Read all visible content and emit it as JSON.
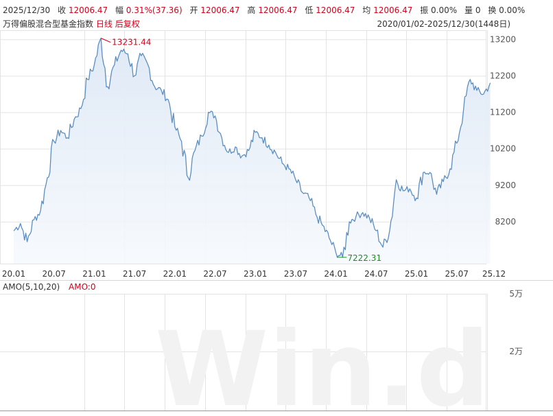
{
  "header": {
    "date": "2025/12/30",
    "close_label": "收",
    "close_value": "12006.47",
    "change_label": "幅",
    "change_value": "0.31%(37.36)",
    "open_label": "开",
    "open_value": "12006.47",
    "high_label": "高",
    "high_value": "12006.47",
    "low_label": "低",
    "low_value": "12006.47",
    "avg_label": "均",
    "avg_value": "12006.47",
    "amp_label": "振",
    "amp_value": "0.00%",
    "vol_label": "量",
    "vol_value": "0",
    "turnover_label": "换",
    "turnover_value": "0.00%"
  },
  "subheader": {
    "index_name": "万得偏股混合型基金指数",
    "period": "日线",
    "adjust": "后复权",
    "range": "2020/01/02-2025/12/30(1448日)"
  },
  "amo": {
    "label": "AMO(5,10,20)",
    "value_label": "AMO:0",
    "ticks": [
      "5万",
      "2万"
    ]
  },
  "watermark": "Win.d",
  "colors": {
    "line": "#5b8ec3",
    "fill_top": "#dde8f5",
    "grid": "#e3e3e3",
    "red": "#d0021b",
    "green": "#1e8f1e"
  },
  "chart_data": {
    "type": "area",
    "title": "",
    "y_ticks": [
      13200,
      12200,
      11200,
      10200,
      9200,
      8200
    ],
    "ylim": [
      7050,
      13450
    ],
    "x_ticks": [
      "20.01",
      "20.07",
      "21.01",
      "21.07",
      "22.01",
      "22.07",
      "23.01",
      "23.07",
      "24.01",
      "24.07",
      "25.01",
      "25.07",
      "25.12"
    ],
    "max_annotation": {
      "date": "21.02",
      "value": 13231.44,
      "label": "13231.44"
    },
    "min_annotation": {
      "date": "24.02",
      "value": 7222.31,
      "label": "7222.31"
    },
    "series": [
      {
        "x": [
          "20.01",
          "20.02",
          "20.03",
          "20.04",
          "20.05",
          "20.06",
          "20.07",
          "20.08",
          "20.09",
          "20.10",
          "20.11",
          "20.12",
          "21.01",
          "21.02",
          "21.03",
          "21.04",
          "21.05",
          "21.06",
          "21.07",
          "21.08",
          "21.09",
          "21.10",
          "21.11",
          "21.12",
          "22.01",
          "22.02",
          "22.03",
          "22.04",
          "22.05",
          "22.06",
          "22.07",
          "22.08",
          "22.09",
          "22.10",
          "22.11",
          "22.12",
          "23.01",
          "23.02",
          "23.03",
          "23.04",
          "23.05",
          "23.06",
          "23.07",
          "23.08",
          "23.09",
          "23.10",
          "23.11",
          "23.12",
          "24.01",
          "24.02",
          "24.03",
          "24.04",
          "24.05",
          "24.06",
          "24.07",
          "24.08",
          "24.09",
          "24.10",
          "24.11",
          "24.12",
          "25.01",
          "25.02",
          "25.03",
          "25.04",
          "25.05",
          "25.06",
          "25.07",
          "25.08",
          "25.09",
          "25.10",
          "25.11",
          "25.12"
        ],
        "values": [
          7950,
          8150,
          7650,
          8250,
          8500,
          9400,
          10400,
          10700,
          10500,
          11000,
          11300,
          12100,
          12500,
          13231.44,
          11900,
          12500,
          12900,
          12800,
          12200,
          12750,
          12500,
          11900,
          11800,
          11550,
          10800,
          10400,
          9400,
          10150,
          10550,
          11200,
          11100,
          10500,
          10100,
          10250,
          10000,
          10150,
          10650,
          10500,
          10300,
          10100,
          9800,
          9650,
          9350,
          9000,
          8850,
          8400,
          8100,
          7750,
          7350,
          7222.31,
          8200,
          8350,
          8450,
          8300,
          7950,
          7500,
          7950,
          9350,
          9050,
          9100,
          8850,
          9550,
          9550,
          8950,
          9300,
          9650,
          10350,
          11250,
          12100,
          11800,
          11700,
          12006.47
        ]
      }
    ]
  }
}
